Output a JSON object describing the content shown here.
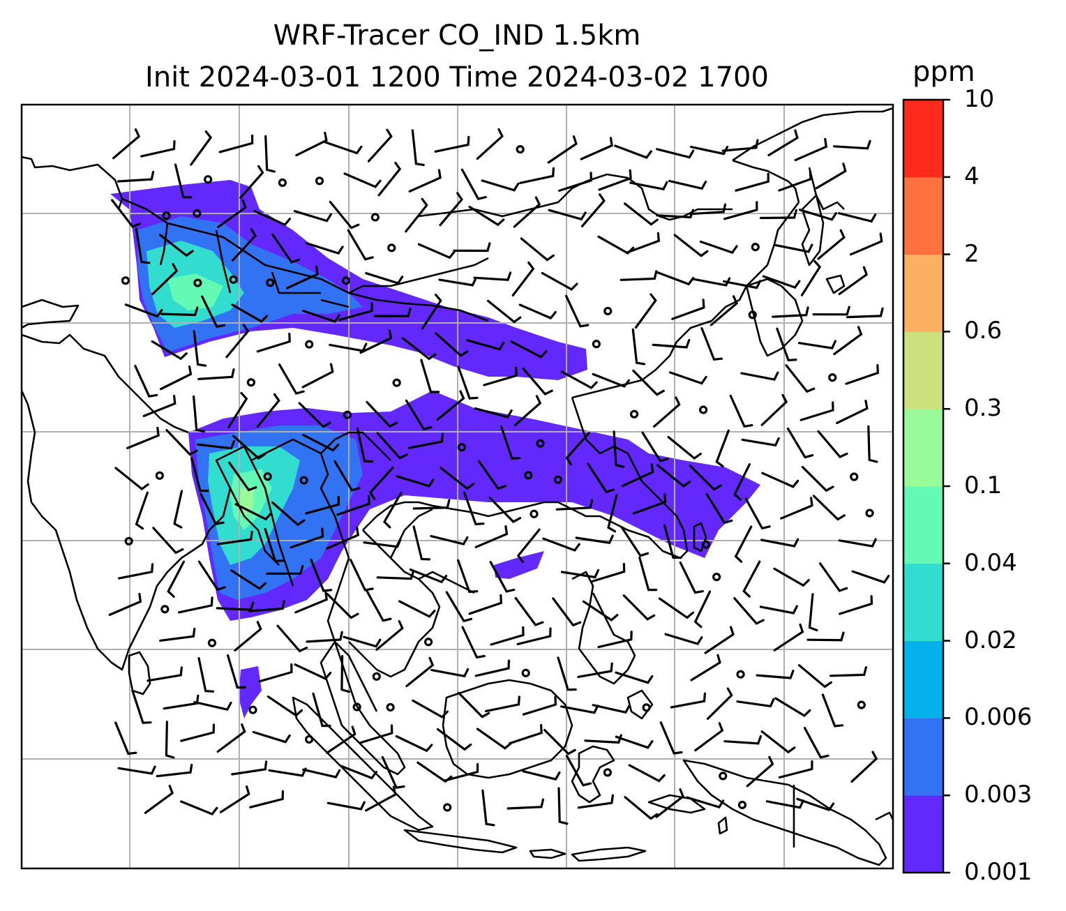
{
  "title": {
    "line1": "WRF-Tracer CO_IND 1.5km",
    "line2": "Init 2024-03-01 1200 Time 2024-03-02 1700"
  },
  "colorbar": {
    "unit": "ppm",
    "levels": [
      "0.001",
      "0.003",
      "0.006",
      "0.02",
      "0.04",
      "0.1",
      "0.3",
      "0.6",
      "2",
      "4",
      "10"
    ],
    "colors": [
      "#6328fb",
      "#3273f4",
      "#04b1ea",
      "#32dccf",
      "#64f9b5",
      "#99fa99",
      "#cce07d",
      "#fdb062",
      "#ff7240",
      "#ff2a1b"
    ]
  },
  "map": {
    "frame_color": "#000000",
    "grid_color": "#b0b0b0",
    "coast_color": "#000000"
  }
}
